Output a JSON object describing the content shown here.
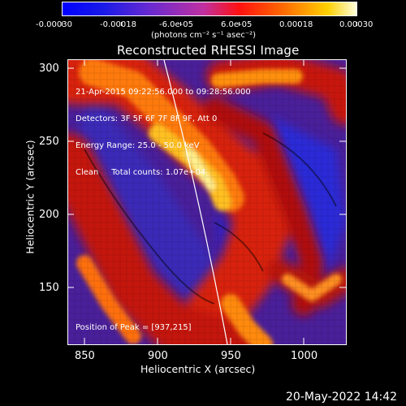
{
  "colorbar": {
    "tick_labels": [
      "-0.00030",
      "-0.00018",
      "-6.0e-05",
      "6.0e-05",
      "0.00018",
      "0.00030"
    ],
    "units": "(photons cm⁻² s⁻¹ asec⁻²)"
  },
  "plot": {
    "title": "Reconstructed RHESSI Image",
    "info_lines": [
      "21-Apr-2015 09:22:56.000 to 09:28:56.000",
      "Detectors: 3F 5F 6F 7F 8F 9F, Att 0",
      "Energy Range: 25.0 - 50.0 keV",
      "Clean     Total counts: 1.07e+04"
    ],
    "peak_label": "Position of Peak = [937,215]",
    "x_axis": {
      "title": "Heliocentric X (arcsec)",
      "ticks": [
        "850",
        "900",
        "950",
        "1000"
      ]
    },
    "y_axis": {
      "title": "Heliocentric Y (arcsec)",
      "ticks": [
        "300",
        "250",
        "200",
        "150"
      ]
    }
  },
  "footer": {
    "timestamp": "20-May-2022 14:42"
  }
}
